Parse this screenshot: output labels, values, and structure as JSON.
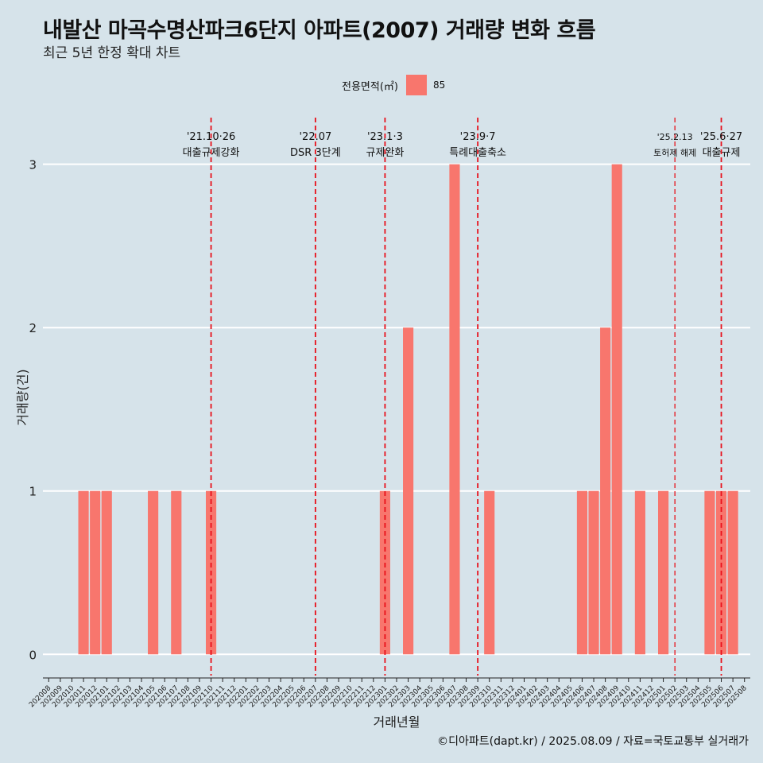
{
  "title": "내발산 마곡수명산파크6단지 아파트(2007) 거래량 변화 흐름",
  "subtitle": "최근 5년 한정 확대 차트",
  "legend": {
    "title": "전용면적(㎡)",
    "label": "85",
    "color": "#f8766d"
  },
  "caption": "©디아파트(dapt.kr) / 2025.08.09 / 자료=국토교통부 실거래가",
  "chart_data": {
    "type": "bar",
    "xlabel": "거래년월",
    "ylabel": "거래량(건)",
    "ylim": [
      -0.13,
      3.3
    ],
    "yticks": [
      0,
      1,
      2,
      3
    ],
    "grid": true,
    "legend_position": "top",
    "categories": [
      "202008",
      "202009",
      "202010",
      "202011",
      "202012",
      "202101",
      "202102",
      "202103",
      "202104",
      "202105",
      "202106",
      "202107",
      "202108",
      "202109",
      "202110",
      "202111",
      "202112",
      "202201",
      "202202",
      "202203",
      "202204",
      "202205",
      "202206",
      "202207",
      "202208",
      "202209",
      "202210",
      "202211",
      "202212",
      "202301",
      "202302",
      "202303",
      "202304",
      "202305",
      "202306",
      "202307",
      "202308",
      "202309",
      "202310",
      "202311",
      "202312",
      "202401",
      "202402",
      "202403",
      "202404",
      "202405",
      "202406",
      "202407",
      "202408",
      "202409",
      "202410",
      "202411",
      "202412",
      "202501",
      "202502",
      "202503",
      "202504",
      "202505",
      "202506",
      "202507",
      "202508"
    ],
    "series": [
      {
        "name": "85",
        "color": "#f8766d",
        "values": [
          0,
          0,
          0,
          1,
          1,
          1,
          0,
          0,
          0,
          1,
          0,
          1,
          0,
          0,
          1,
          0,
          0,
          0,
          0,
          0,
          0,
          0,
          0,
          0,
          0,
          0,
          0,
          0,
          0,
          1,
          0,
          2,
          0,
          0,
          0,
          3,
          0,
          0,
          1,
          0,
          0,
          0,
          0,
          0,
          0,
          0,
          1,
          1,
          2,
          3,
          0,
          1,
          0,
          1,
          0,
          0,
          0,
          1,
          1,
          1,
          0
        ]
      }
    ],
    "annotations": [
      {
        "x": "202110",
        "line1": "'21.10·26",
        "line2": "대출규제강화",
        "small": false
      },
      {
        "x": "202207",
        "line1": "'22.07",
        "line2": "DSR 3단계",
        "small": false
      },
      {
        "x": "202301",
        "line1": "'23.1·3",
        "line2": "규제완화",
        "small": false
      },
      {
        "x": "202309",
        "line1": "'23.9·7",
        "line2": "특례대출축소",
        "small": false
      },
      {
        "x": "202502",
        "line1": "'25.2.13",
        "line2": "토허제 해제",
        "small": true
      },
      {
        "x": "202506",
        "line1": "'25.6·27",
        "line2": "대출규제",
        "small": false
      }
    ]
  }
}
